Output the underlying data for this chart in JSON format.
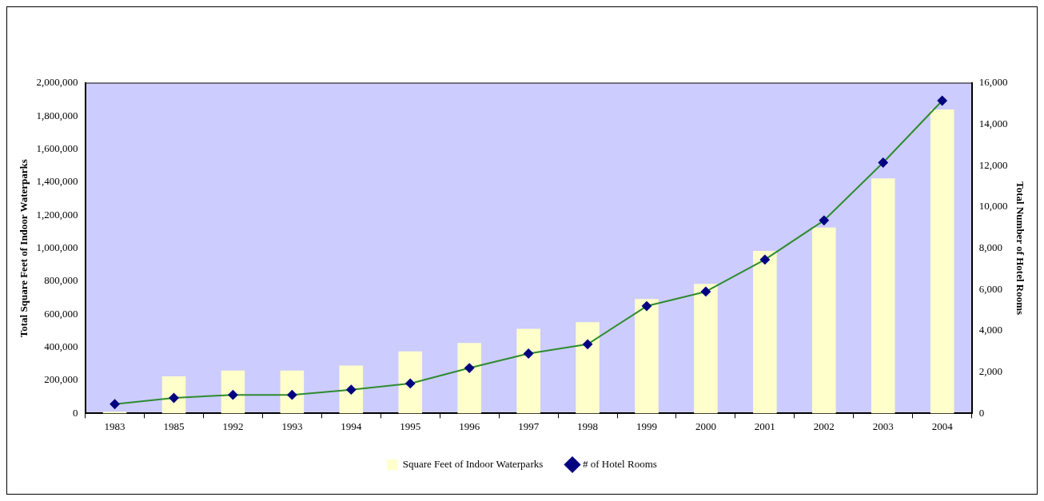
{
  "chart_data": {
    "type": "bar",
    "categories": [
      "1983",
      "1985",
      "1992",
      "1993",
      "1994",
      "1995",
      "1996",
      "1997",
      "1998",
      "1999",
      "2000",
      "2001",
      "2002",
      "2003",
      "2004"
    ],
    "series": [
      {
        "name": "Square Feet of Indoor Waterparks",
        "color": "#ffffcc",
        "values": [
          10000,
          225000,
          260000,
          260000,
          290000,
          376000,
          426000,
          512000,
          552000,
          692000,
          785000,
          984000,
          1126000,
          1423000,
          1840000
        ]
      },
      {
        "name": "# of Hotel Rooms",
        "type": "line",
        "axis": "y2",
        "color": "#2e8b2e",
        "values": [
          450,
          750,
          900,
          900,
          1150,
          1450,
          2200,
          2900,
          3350,
          5200,
          5900,
          7450,
          9350,
          12150,
          15150
        ]
      }
    ],
    "ylabel": "Total Square Feet of Indoor Waterparks",
    "y2label": "Total Number of Hotel Rooms",
    "ylim": [
      0,
      2000000
    ],
    "yticks": [
      0,
      {
        "value": 200000,
        "label": "200,000"
      },
      {
        "value": 400000,
        "label": "400,000"
      },
      {
        "value": 600000,
        "label": "600,000"
      },
      {
        "value": 800000,
        "label": "800,000"
      },
      {
        "value": 1000000,
        "label": "1,000,000"
      },
      {
        "value": 1200000,
        "label": "1,200,000"
      },
      {
        "value": 1400000,
        "label": "1,400,000"
      },
      {
        "value": 1600000,
        "label": "1,600,000"
      },
      {
        "value": 1800000,
        "label": "1,800,000"
      },
      {
        "value": 2000000,
        "label": "2,000,000"
      }
    ],
    "y2lim": [
      0,
      16000
    ],
    "y2ticks": [
      0,
      {
        "value": 2000,
        "label": "2,000"
      },
      {
        "value": 4000,
        "label": "4,000"
      },
      {
        "value": 6000,
        "label": "6,000"
      },
      {
        "value": 8000,
        "label": "8,000"
      },
      {
        "value": 10000,
        "label": "10,000"
      },
      {
        "value": 12000,
        "label": "12,000"
      },
      {
        "value": 14000,
        "label": "14,000"
      },
      {
        "value": 16000,
        "label": "16,000"
      }
    ],
    "grid": false,
    "legend": "bottom",
    "marker": "diamond",
    "line_style": "solid"
  }
}
